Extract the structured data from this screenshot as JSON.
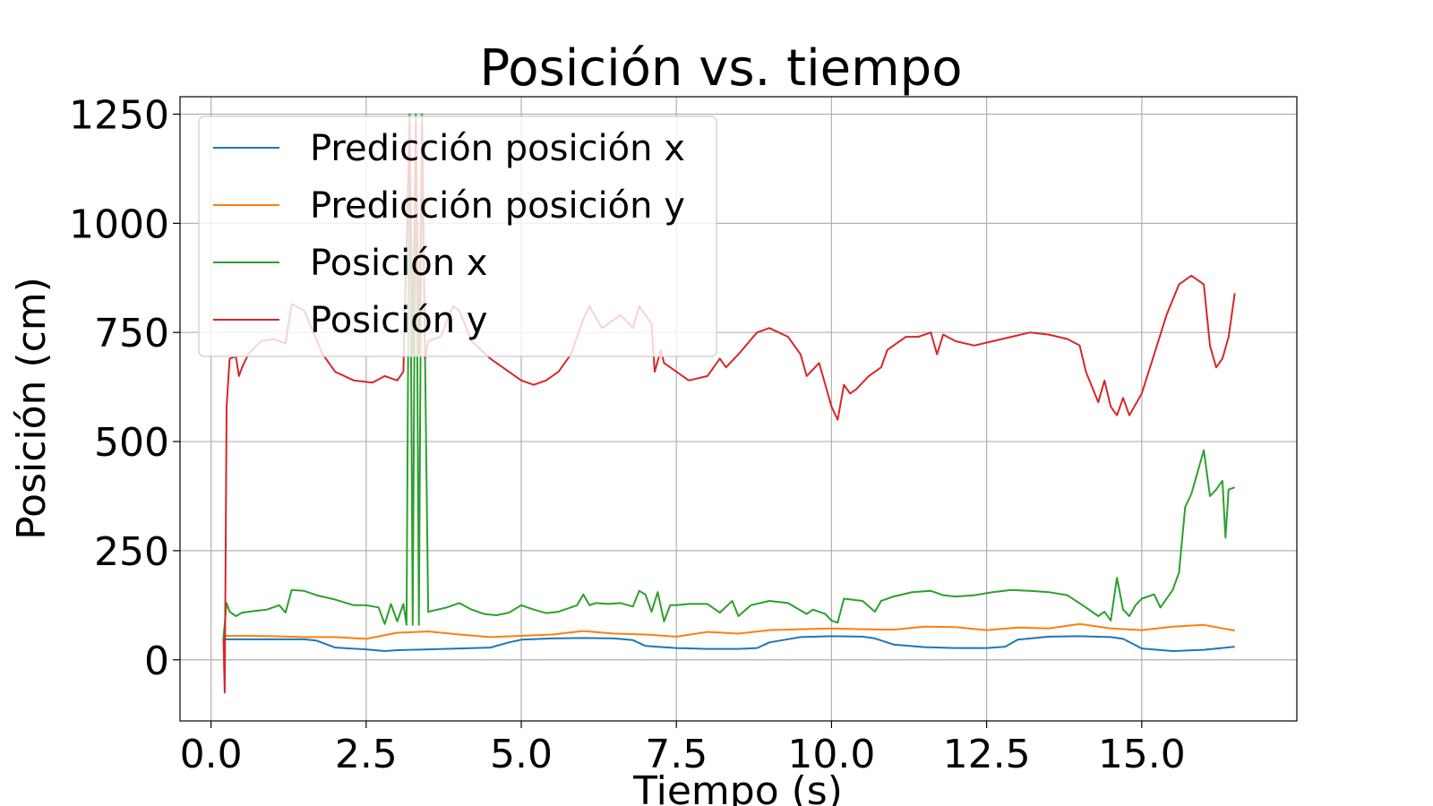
{
  "chart_data": {
    "type": "line",
    "title": "Posición vs. tiempo",
    "xlabel": "Tiempo (s)",
    "ylabel": "Posición (cm)",
    "xlim": [
      -0.5,
      17.5
    ],
    "ylim": [
      -140,
      1290
    ],
    "xticks": [
      0.0,
      2.5,
      5.0,
      7.5,
      10.0,
      12.5,
      15.0
    ],
    "xtick_labels": [
      "0.0",
      "2.5",
      "5.0",
      "7.5",
      "10.0",
      "12.5",
      "15.0"
    ],
    "yticks": [
      0,
      250,
      500,
      750,
      1000,
      1250
    ],
    "ytick_labels": [
      "0",
      "250",
      "500",
      "750",
      "1000",
      "1250"
    ],
    "grid": true,
    "legend_position": "upper-left",
    "series": [
      {
        "name": "Predicción posición x",
        "color": "#1f77b4",
        "x": [
          0.2,
          0.5,
          1.0,
          1.5,
          1.7,
          2.0,
          2.5,
          2.8,
          3.0,
          3.5,
          4.0,
          4.5,
          4.8,
          5.0,
          5.5,
          6.0,
          6.5,
          6.8,
          7.0,
          7.5,
          8.0,
          8.5,
          8.8,
          9.0,
          9.5,
          10.0,
          10.5,
          10.7,
          11.0,
          11.5,
          12.0,
          12.5,
          12.8,
          13.0,
          13.5,
          14.0,
          14.5,
          14.7,
          15.0,
          15.5,
          16.0,
          16.5
        ],
        "y": [
          47,
          47,
          47,
          47,
          44,
          28,
          24,
          20,
          22,
          24,
          26,
          28,
          40,
          46,
          49,
          50,
          49,
          45,
          32,
          27,
          25,
          25,
          27,
          40,
          52,
          54,
          53,
          49,
          35,
          29,
          27,
          27,
          30,
          46,
          53,
          54,
          52,
          48,
          26,
          20,
          23,
          30
        ]
      },
      {
        "name": "Predicción posición y",
        "color": "#ff7f0e",
        "x": [
          0.2,
          0.5,
          1.0,
          1.5,
          2.0,
          2.5,
          3.0,
          3.5,
          4.0,
          4.5,
          5.0,
          5.5,
          6.0,
          6.5,
          7.0,
          7.5,
          8.0,
          8.5,
          9.0,
          9.5,
          10.0,
          10.5,
          11.0,
          11.5,
          12.0,
          12.5,
          13.0,
          13.5,
          14.0,
          14.5,
          15.0,
          15.5,
          16.0,
          16.5
        ],
        "y": [
          55,
          55,
          54,
          52,
          52,
          48,
          62,
          65,
          58,
          52,
          55,
          58,
          66,
          60,
          58,
          53,
          64,
          60,
          68,
          70,
          72,
          70,
          69,
          76,
          75,
          68,
          74,
          72,
          82,
          72,
          68,
          76,
          80,
          67
        ]
      },
      {
        "name": "Posición x",
        "color": "#2ca02c",
        "x": [
          0.2,
          0.25,
          0.3,
          0.4,
          0.5,
          0.7,
          0.9,
          1.1,
          1.2,
          1.3,
          1.5,
          1.7,
          2.0,
          2.3,
          2.5,
          2.7,
          2.8,
          2.9,
          3.0,
          3.1,
          3.15,
          3.2,
          3.25,
          3.3,
          3.35,
          3.4,
          3.5,
          3.8,
          4.0,
          4.2,
          4.4,
          4.6,
          4.8,
          5.0,
          5.2,
          5.4,
          5.6,
          5.9,
          6.0,
          6.1,
          6.2,
          6.4,
          6.6,
          6.8,
          6.9,
          7.0,
          7.1,
          7.2,
          7.3,
          7.4,
          7.5,
          7.7,
          8.0,
          8.2,
          8.4,
          8.5,
          8.7,
          9.0,
          9.3,
          9.6,
          9.7,
          9.9,
          10.0,
          10.1,
          10.2,
          10.5,
          10.7,
          10.8,
          11.0,
          11.3,
          11.6,
          11.8,
          12.0,
          12.3,
          12.6,
          12.9,
          13.2,
          13.5,
          13.8,
          14.1,
          14.3,
          14.4,
          14.5,
          14.6,
          14.7,
          14.8,
          14.9,
          15.0,
          15.2,
          15.3,
          15.5,
          15.6,
          15.7,
          15.8,
          16.0,
          16.1,
          16.2,
          16.3,
          16.35,
          16.4,
          16.5
        ],
        "y": [
          50,
          130,
          110,
          100,
          108,
          112,
          115,
          125,
          108,
          160,
          158,
          148,
          138,
          125,
          125,
          120,
          82,
          128,
          88,
          128,
          80,
          1250,
          80,
          1250,
          80,
          1250,
          110,
          120,
          130,
          115,
          105,
          102,
          108,
          125,
          115,
          107,
          110,
          125,
          150,
          125,
          130,
          128,
          130,
          122,
          158,
          150,
          110,
          155,
          88,
          125,
          125,
          128,
          128,
          108,
          135,
          100,
          125,
          135,
          130,
          105,
          115,
          105,
          90,
          85,
          140,
          135,
          110,
          135,
          145,
          155,
          158,
          148,
          145,
          148,
          155,
          160,
          158,
          155,
          148,
          120,
          100,
          110,
          90,
          188,
          115,
          100,
          125,
          140,
          150,
          120,
          160,
          200,
          350,
          380,
          480,
          375,
          390,
          410,
          280,
          390,
          395
        ]
      },
      {
        "name": "Posición y",
        "color": "#d62728",
        "x": [
          0.2,
          0.22,
          0.25,
          0.3,
          0.4,
          0.45,
          0.5,
          0.6,
          0.8,
          1.0,
          1.2,
          1.3,
          1.5,
          1.8,
          2.0,
          2.3,
          2.6,
          2.8,
          3.0,
          3.1,
          3.2,
          3.25,
          3.3,
          3.35,
          3.4,
          3.45,
          3.5,
          3.7,
          3.9,
          4.0,
          4.2,
          4.5,
          4.8,
          5.0,
          5.2,
          5.4,
          5.6,
          5.8,
          6.0,
          6.1,
          6.3,
          6.6,
          6.8,
          6.9,
          7.1,
          7.15,
          7.25,
          7.3,
          7.5,
          7.7,
          8.0,
          8.2,
          8.3,
          8.5,
          8.8,
          9.0,
          9.3,
          9.5,
          9.6,
          9.8,
          9.9,
          10.0,
          10.1,
          10.2,
          10.3,
          10.4,
          10.6,
          10.8,
          10.9,
          11.0,
          11.2,
          11.4,
          11.6,
          11.7,
          11.8,
          12.0,
          12.3,
          12.6,
          12.9,
          13.2,
          13.5,
          13.8,
          14.0,
          14.1,
          14.3,
          14.4,
          14.5,
          14.6,
          14.7,
          14.8,
          15.0,
          15.2,
          15.4,
          15.6,
          15.8,
          16.0,
          16.1,
          16.2,
          16.3,
          16.4,
          16.5
        ],
        "y": [
          50,
          -75,
          580,
          690,
          695,
          650,
          670,
          700,
          730,
          735,
          725,
          815,
          800,
          700,
          660,
          640,
          635,
          650,
          640,
          660,
          1230,
          700,
          1230,
          700,
          1230,
          690,
          730,
          740,
          810,
          800,
          730,
          690,
          660,
          640,
          630,
          640,
          660,
          700,
          780,
          810,
          760,
          790,
          760,
          810,
          770,
          660,
          710,
          680,
          660,
          640,
          650,
          690,
          670,
          700,
          750,
          760,
          740,
          700,
          650,
          680,
          630,
          580,
          550,
          630,
          610,
          620,
          650,
          670,
          710,
          720,
          740,
          740,
          750,
          700,
          745,
          730,
          720,
          730,
          740,
          750,
          745,
          735,
          720,
          660,
          590,
          640,
          580,
          560,
          600,
          560,
          610,
          700,
          790,
          860,
          880,
          860,
          720,
          670,
          690,
          740,
          840
        ]
      }
    ]
  }
}
